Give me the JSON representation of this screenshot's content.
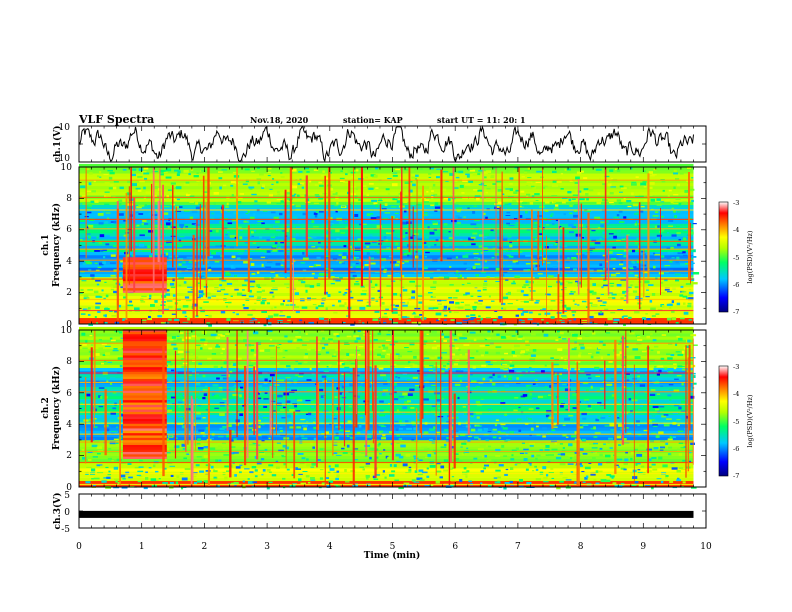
{
  "chart_data": {
    "type": "heatmap",
    "header": {
      "title": "VLF Spectra",
      "date": "Nov.18, 2020",
      "station": "station= KAP",
      "start": "start  UT =   11: 20: 1"
    },
    "x_axis": {
      "label": "Time (min)",
      "range": [
        0,
        10
      ],
      "ticks": [
        "0",
        "1",
        "2",
        "3",
        "4",
        "5",
        "6",
        "7",
        "8",
        "9",
        "10"
      ]
    },
    "panels": [
      {
        "id": "ch1v",
        "type": "line",
        "ylabel": "ch.1(V)",
        "ylim": [
          -10,
          10
        ],
        "yticks": [
          "10",
          "-10"
        ],
        "data_span_min": [
          0,
          9.8
        ]
      },
      {
        "id": "ch1spec",
        "type": "heatmap",
        "ylabel_lines": [
          "ch.1",
          "Frequency (kHz)"
        ],
        "ylim": [
          0,
          10
        ],
        "yticks": [
          "0",
          "2",
          "4",
          "6",
          "8",
          "10"
        ],
        "data_span_min": [
          0,
          9.8
        ],
        "features": [
          {
            "kind": "strong-band",
            "t_min": [
              0.7,
              1.4
            ],
            "f_khz": [
              2.0,
              4.2
            ]
          }
        ]
      },
      {
        "id": "ch2spec",
        "type": "heatmap",
        "ylabel_lines": [
          "ch.2",
          "Frequency (kHz)"
        ],
        "ylim": [
          0,
          10
        ],
        "yticks": [
          "0",
          "2",
          "4",
          "6",
          "8",
          "10"
        ],
        "data_span_min": [
          0,
          9.8
        ],
        "features": [
          {
            "kind": "strong-band",
            "t_min": [
              0.7,
              1.4
            ],
            "f_khz": [
              1.8,
              10.0
            ]
          }
        ]
      },
      {
        "id": "ch3v",
        "type": "line",
        "ylabel": "ch.3(V)",
        "ylim": [
          -5,
          5
        ],
        "yticks": [
          "5",
          "0",
          "-5"
        ],
        "constant_value": -1,
        "data_span_min": [
          0,
          9.8
        ]
      }
    ],
    "colorbar": {
      "label": "log(PSD)(V²/Hz)",
      "range": [
        -7,
        -3
      ],
      "ticks": [
        "-3",
        "-4",
        "-5",
        "-6",
        "-7"
      ],
      "colors": [
        "#000080",
        "#0000ff",
        "#00c8ff",
        "#00ff64",
        "#b4ff00",
        "#ffff00",
        "#ff7800",
        "#ff0000",
        "#ffffff"
      ]
    }
  }
}
